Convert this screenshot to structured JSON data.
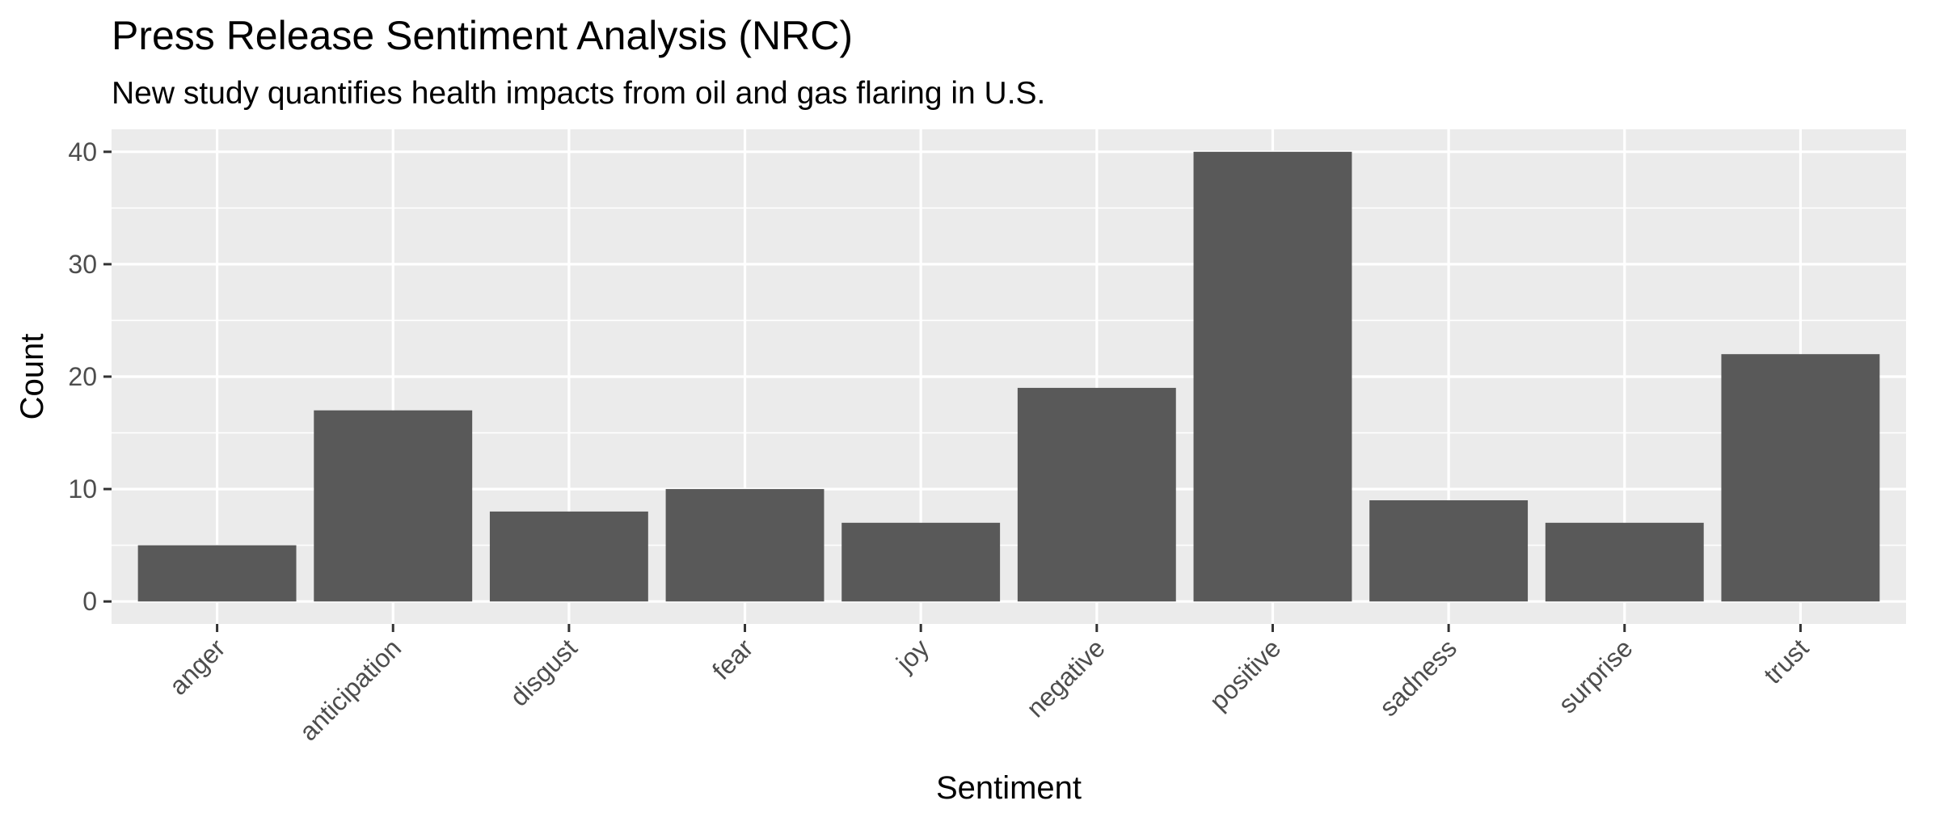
{
  "chart_data": {
    "type": "bar",
    "title": "Press Release Sentiment Analysis (NRC)",
    "subtitle": "New study quantifies health impacts from oil and gas flaring in U.S.",
    "xlabel": "Sentiment",
    "ylabel": "Count",
    "categories": [
      "anger",
      "anticipation",
      "disgust",
      "fear",
      "joy",
      "negative",
      "positive",
      "sadness",
      "surprise",
      "trust"
    ],
    "values": [
      5,
      17,
      8,
      10,
      7,
      19,
      40,
      9,
      7,
      22
    ],
    "ylim": [
      -2,
      42
    ],
    "yticks": [
      0,
      10,
      20,
      30,
      40
    ],
    "grid": true,
    "legend": "none",
    "colors": {
      "bar": "#595959",
      "panel": "#ebebeb",
      "grid": "#ffffff",
      "tick_text": "#4d4d4d",
      "tick_mark": "#333333"
    }
  }
}
